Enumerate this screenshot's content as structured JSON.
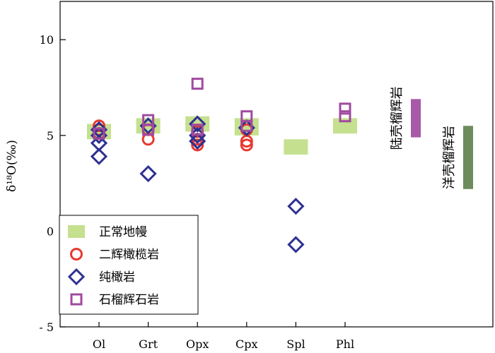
{
  "chart_data": {
    "type": "scatter",
    "title": "",
    "xlabel": "",
    "ylabel": "δ¹⁸O(‰)",
    "ylim": [
      -5,
      12
    ],
    "yticks": [
      -5,
      0,
      5,
      10
    ],
    "ytick_labels": [
      "- 5",
      "0",
      "5",
      "10"
    ],
    "categories": [
      "Ol",
      "Grt",
      "Opx",
      "Cpx",
      "Spl",
      "Phl"
    ],
    "grid": false,
    "legend_position": "bottom-left",
    "normal_mantle": {
      "name": "正常地幔",
      "color": "#c5e08f",
      "ranges": [
        {
          "category": "Ol",
          "low": 4.8,
          "high": 5.6
        },
        {
          "category": "Grt",
          "low": 5.1,
          "high": 5.9
        },
        {
          "category": "Opx",
          "low": 5.2,
          "high": 6.0
        },
        {
          "category": "Cpx",
          "low": 5.0,
          "high": 5.9
        },
        {
          "category": "Spl",
          "low": 4.0,
          "high": 4.8
        },
        {
          "category": "Phl",
          "low": 5.1,
          "high": 5.9
        }
      ]
    },
    "series": [
      {
        "name": "二辉橄榄岩",
        "marker": "circle",
        "color": "#e8392f",
        "points": [
          {
            "category": "Ol",
            "y": 5.5
          },
          {
            "category": "Ol",
            "y": 5.3
          },
          {
            "category": "Ol",
            "y": 5.1
          },
          {
            "category": "Grt",
            "y": 4.8
          },
          {
            "category": "Grt",
            "y": 5.3
          },
          {
            "category": "Opx",
            "y": 4.5
          },
          {
            "category": "Opx",
            "y": 4.8
          },
          {
            "category": "Opx",
            "y": 5.2
          },
          {
            "category": "Cpx",
            "y": 4.5
          },
          {
            "category": "Cpx",
            "y": 4.7
          },
          {
            "category": "Cpx",
            "y": 5.3
          }
        ]
      },
      {
        "name": "纯橄岩",
        "marker": "diamond",
        "color": "#2e3192",
        "points": [
          {
            "category": "Ol",
            "y": 3.9
          },
          {
            "category": "Ol",
            "y": 4.6
          },
          {
            "category": "Ol",
            "y": 5.0
          },
          {
            "category": "Ol",
            "y": 5.3
          },
          {
            "category": "Grt",
            "y": 3.0
          },
          {
            "category": "Grt",
            "y": 5.5
          },
          {
            "category": "Opx",
            "y": 4.7
          },
          {
            "category": "Opx",
            "y": 5.0
          },
          {
            "category": "Opx",
            "y": 5.6
          },
          {
            "category": "Cpx",
            "y": 5.4
          },
          {
            "category": "Spl",
            "y": 1.3
          },
          {
            "category": "Spl",
            "y": -0.7
          }
        ]
      },
      {
        "name": "石榴辉石岩",
        "marker": "square",
        "color": "#a04aa0",
        "points": [
          {
            "category": "Ol",
            "y": 5.1
          },
          {
            "category": "Grt",
            "y": 5.3
          },
          {
            "category": "Grt",
            "y": 5.8
          },
          {
            "category": "Opx",
            "y": 7.7
          },
          {
            "category": "Opx",
            "y": 5.3
          },
          {
            "category": "Cpx",
            "y": 6.0
          },
          {
            "category": "Cpx",
            "y": 5.5
          },
          {
            "category": "Phl",
            "y": 6.0
          },
          {
            "category": "Phl",
            "y": 6.4
          }
        ]
      }
    ],
    "reference_ranges": [
      {
        "name": "陆壳榴辉岩",
        "low": 4.9,
        "high": 6.9,
        "color": "#a85aa8"
      },
      {
        "name": "洋壳榴辉岩",
        "low": 2.2,
        "high": 5.5,
        "color": "#6c8c5c"
      }
    ]
  }
}
